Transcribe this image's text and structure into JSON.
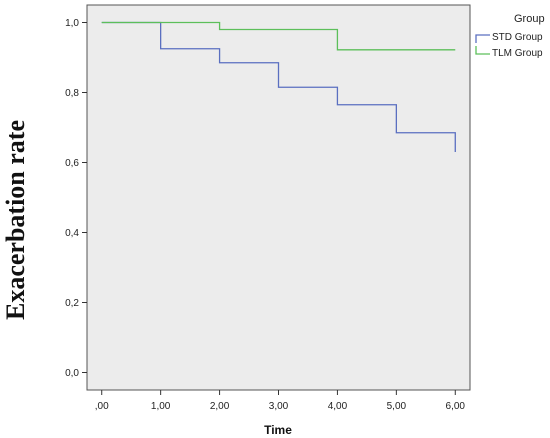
{
  "chart_data": {
    "type": "line",
    "step": true,
    "xlabel": "Time",
    "ylabel": "Exacerbation rate",
    "xlim": [
      -0.25,
      6.25
    ],
    "ylim": [
      -0.05,
      1.05
    ],
    "x_ticks": [
      0,
      1,
      2,
      3,
      4,
      5,
      6
    ],
    "x_tick_labels": [
      ",00",
      "1,00",
      "2,00",
      "3,00",
      "4,00",
      "5,00",
      "6,00"
    ],
    "y_ticks": [
      0,
      0.2,
      0.4,
      0.6,
      0.8,
      1.0
    ],
    "y_tick_labels": [
      "0,0",
      "0,2",
      "0,4",
      "0,6",
      "0,8",
      "1,0"
    ],
    "grid": false,
    "plot_background": "#ececec",
    "legend": {
      "title": "Group",
      "position": "top-right-outside"
    },
    "series": [
      {
        "name": "STD Group",
        "color": "#5a6fc0",
        "points": [
          [
            0,
            1.0
          ],
          [
            1,
            1.0
          ],
          [
            1,
            0.925
          ],
          [
            2,
            0.925
          ],
          [
            2,
            0.885
          ],
          [
            3,
            0.885
          ],
          [
            3,
            0.815
          ],
          [
            4,
            0.815
          ],
          [
            4,
            0.765
          ],
          [
            5,
            0.765
          ],
          [
            5,
            0.685
          ],
          [
            6,
            0.685
          ],
          [
            6,
            0.63
          ]
        ]
      },
      {
        "name": "TLM Group",
        "color": "#5cbf5a",
        "points": [
          [
            0,
            1.0
          ],
          [
            2,
            1.0
          ],
          [
            2,
            0.98
          ],
          [
            4,
            0.98
          ],
          [
            4,
            0.922
          ],
          [
            6,
            0.922
          ]
        ]
      }
    ]
  }
}
